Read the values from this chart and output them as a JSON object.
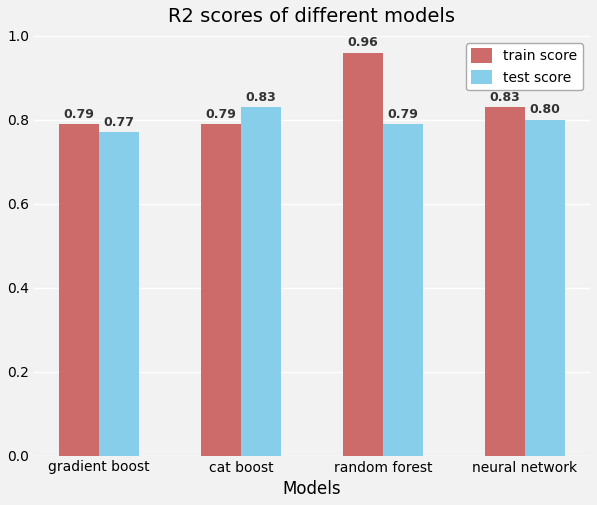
{
  "title": "R2 scores of different models",
  "xlabel": "Models",
  "categories": [
    "gradient boost",
    "cat boost",
    "random forest",
    "neural network"
  ],
  "train_scores": [
    0.79,
    0.79,
    0.96,
    0.83
  ],
  "test_scores": [
    0.77,
    0.83,
    0.79,
    0.8
  ],
  "train_color": "#cd6b6b",
  "test_color": "#87ceeb",
  "train_label": "train score",
  "test_label": "test score",
  "ylim": [
    0.0,
    1.0
  ],
  "yticks": [
    0.0,
    0.2,
    0.4,
    0.6,
    0.8,
    1.0
  ],
  "bar_width": 0.28,
  "background_color": "#f2f2f2",
  "title_fontsize": 14,
  "label_fontsize": 12,
  "tick_fontsize": 10,
  "legend_fontsize": 10,
  "annotation_fontsize": 9
}
